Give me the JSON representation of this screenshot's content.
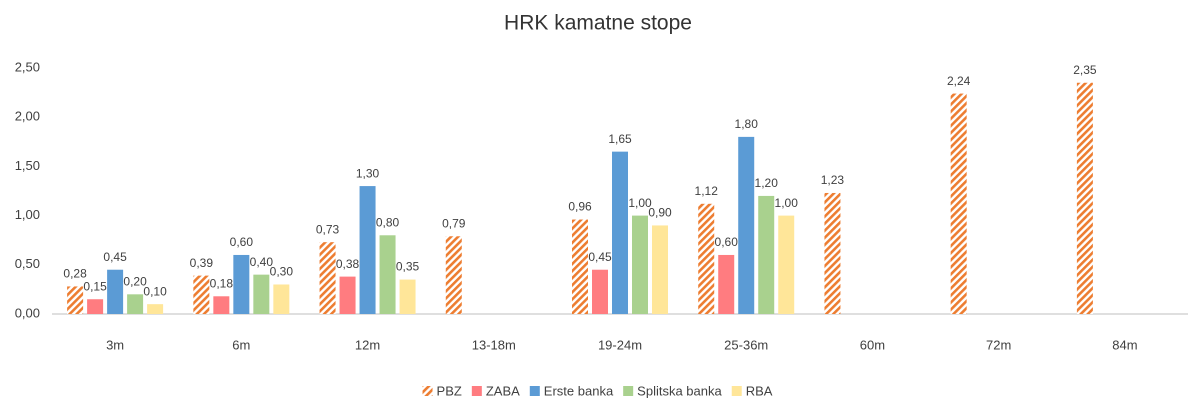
{
  "chart_data": {
    "type": "bar",
    "title": "HRK kamatne stope",
    "categories": [
      "3m",
      "6m",
      "12m",
      "13-18m",
      "19-24m",
      "25-36m",
      "60m",
      "72m",
      "84m"
    ],
    "series": [
      {
        "name": "PBZ",
        "color": "#ed7d31",
        "pattern": "hatch",
        "values": [
          0.28,
          0.39,
          0.73,
          0.79,
          0.96,
          1.12,
          1.23,
          2.24,
          2.35
        ],
        "value_labels": [
          "0,28",
          "0,39",
          "0,73",
          "0,79",
          "0,96",
          "1,12",
          "1,23",
          "2,24",
          "2,35"
        ]
      },
      {
        "name": "ZABA",
        "color": "#ff7c80",
        "values": [
          0.15,
          0.18,
          0.38,
          null,
          0.45,
          0.6,
          null,
          null,
          null
        ],
        "value_labels": [
          "0,15",
          "0,18",
          "0,38",
          null,
          "0,45",
          "0,60",
          null,
          null,
          null
        ]
      },
      {
        "name": "Erste banka",
        "color": "#5b9bd5",
        "values": [
          0.45,
          0.6,
          1.3,
          null,
          1.65,
          1.8,
          null,
          null,
          null
        ],
        "value_labels": [
          "0,45",
          "0,60",
          "1,30",
          null,
          "1,65",
          "1,80",
          null,
          null,
          null
        ]
      },
      {
        "name": "Splitska banka",
        "color": "#a9d18e",
        "values": [
          0.2,
          0.4,
          0.8,
          null,
          1.0,
          1.2,
          null,
          null,
          null
        ],
        "value_labels": [
          "0,20",
          "0,40",
          "0,80",
          null,
          "1,00",
          "1,20",
          null,
          null,
          null
        ]
      },
      {
        "name": "RBA",
        "color": "#ffe699",
        "values": [
          0.1,
          0.3,
          0.35,
          null,
          0.9,
          1.0,
          null,
          null,
          null
        ],
        "value_labels": [
          "0,10",
          "0,30",
          "0,35",
          null,
          "0,90",
          "1,00",
          null,
          null,
          null
        ]
      }
    ],
    "ylim": [
      0,
      2.5
    ],
    "yticks": [
      {
        "value": 0,
        "label": "0,00"
      },
      {
        "value": 0.5,
        "label": "0,50"
      },
      {
        "value": 1,
        "label": "1,00"
      },
      {
        "value": 1.5,
        "label": "1,50"
      },
      {
        "value": 2,
        "label": "2,00"
      },
      {
        "value": 2.5,
        "label": "2,50"
      }
    ],
    "grid": false,
    "legend": "bottom"
  }
}
